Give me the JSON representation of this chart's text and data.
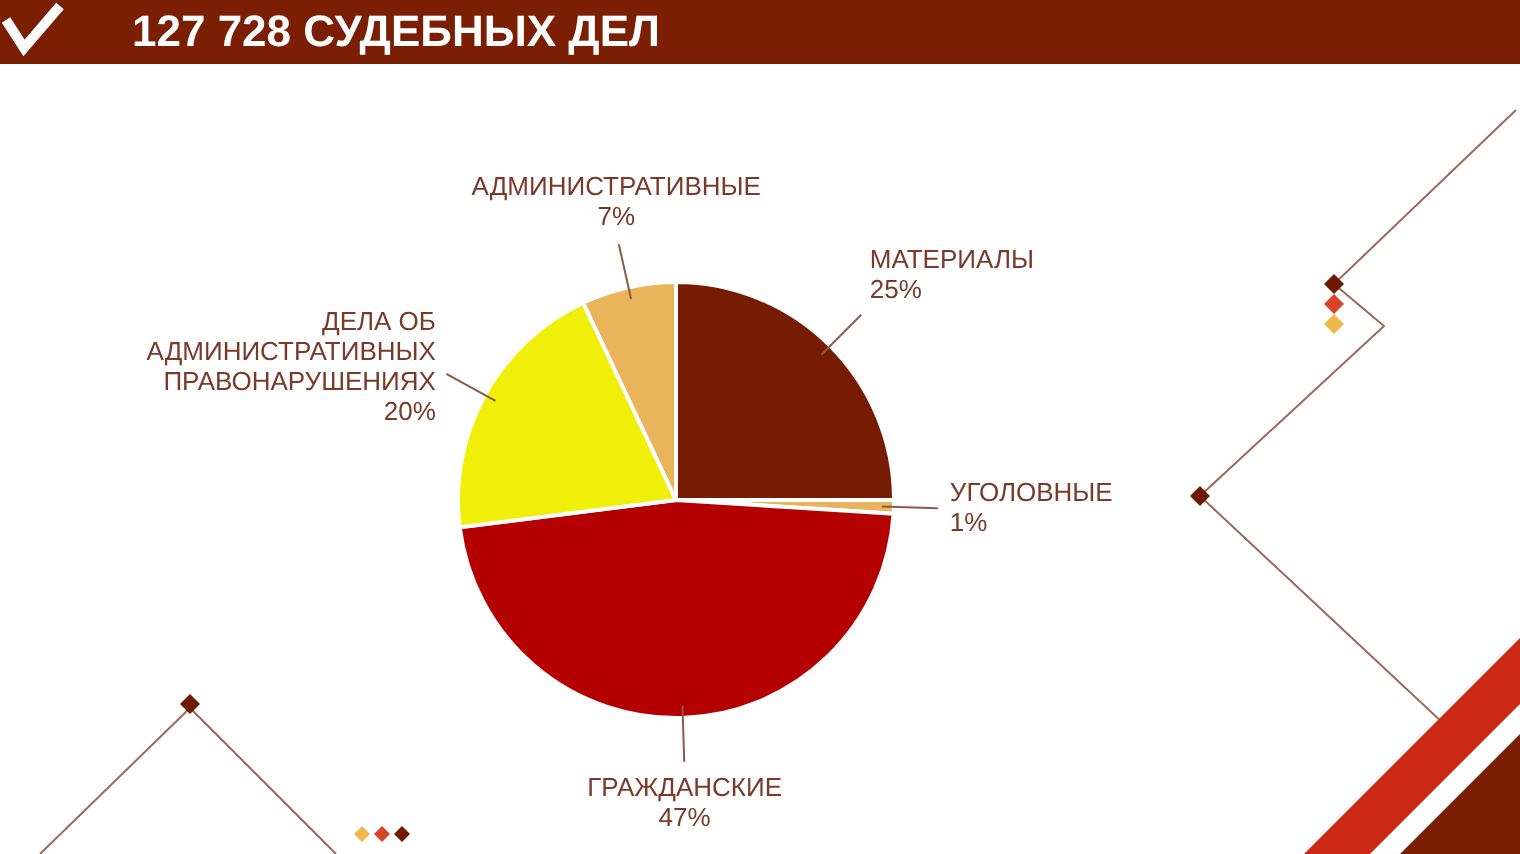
{
  "chart_data": {
    "type": "pie",
    "title": "127 728 СУДЕБНЫХ ДЕЛ",
    "categories": [
      "МАТЕРИАЛЫ",
      "УГОЛОВНЫЕ",
      "ГРАЖДАНСКИЕ",
      "ДЕЛА ОБ АДМИНИСТРАТИВНЫХ ПРАВОНАРУШЕНИЯХ",
      "АДМИНИСТРАТИВНЫЕ"
    ],
    "values": [
      25,
      1,
      47,
      20,
      7
    ],
    "colors": [
      "#761c02",
      "#e8b55c",
      "#b40000",
      "#f0ef0a",
      "#e9b45a"
    ],
    "value_labels": [
      "25%",
      "1%",
      "47%",
      "20%",
      "7%"
    ]
  }
}
